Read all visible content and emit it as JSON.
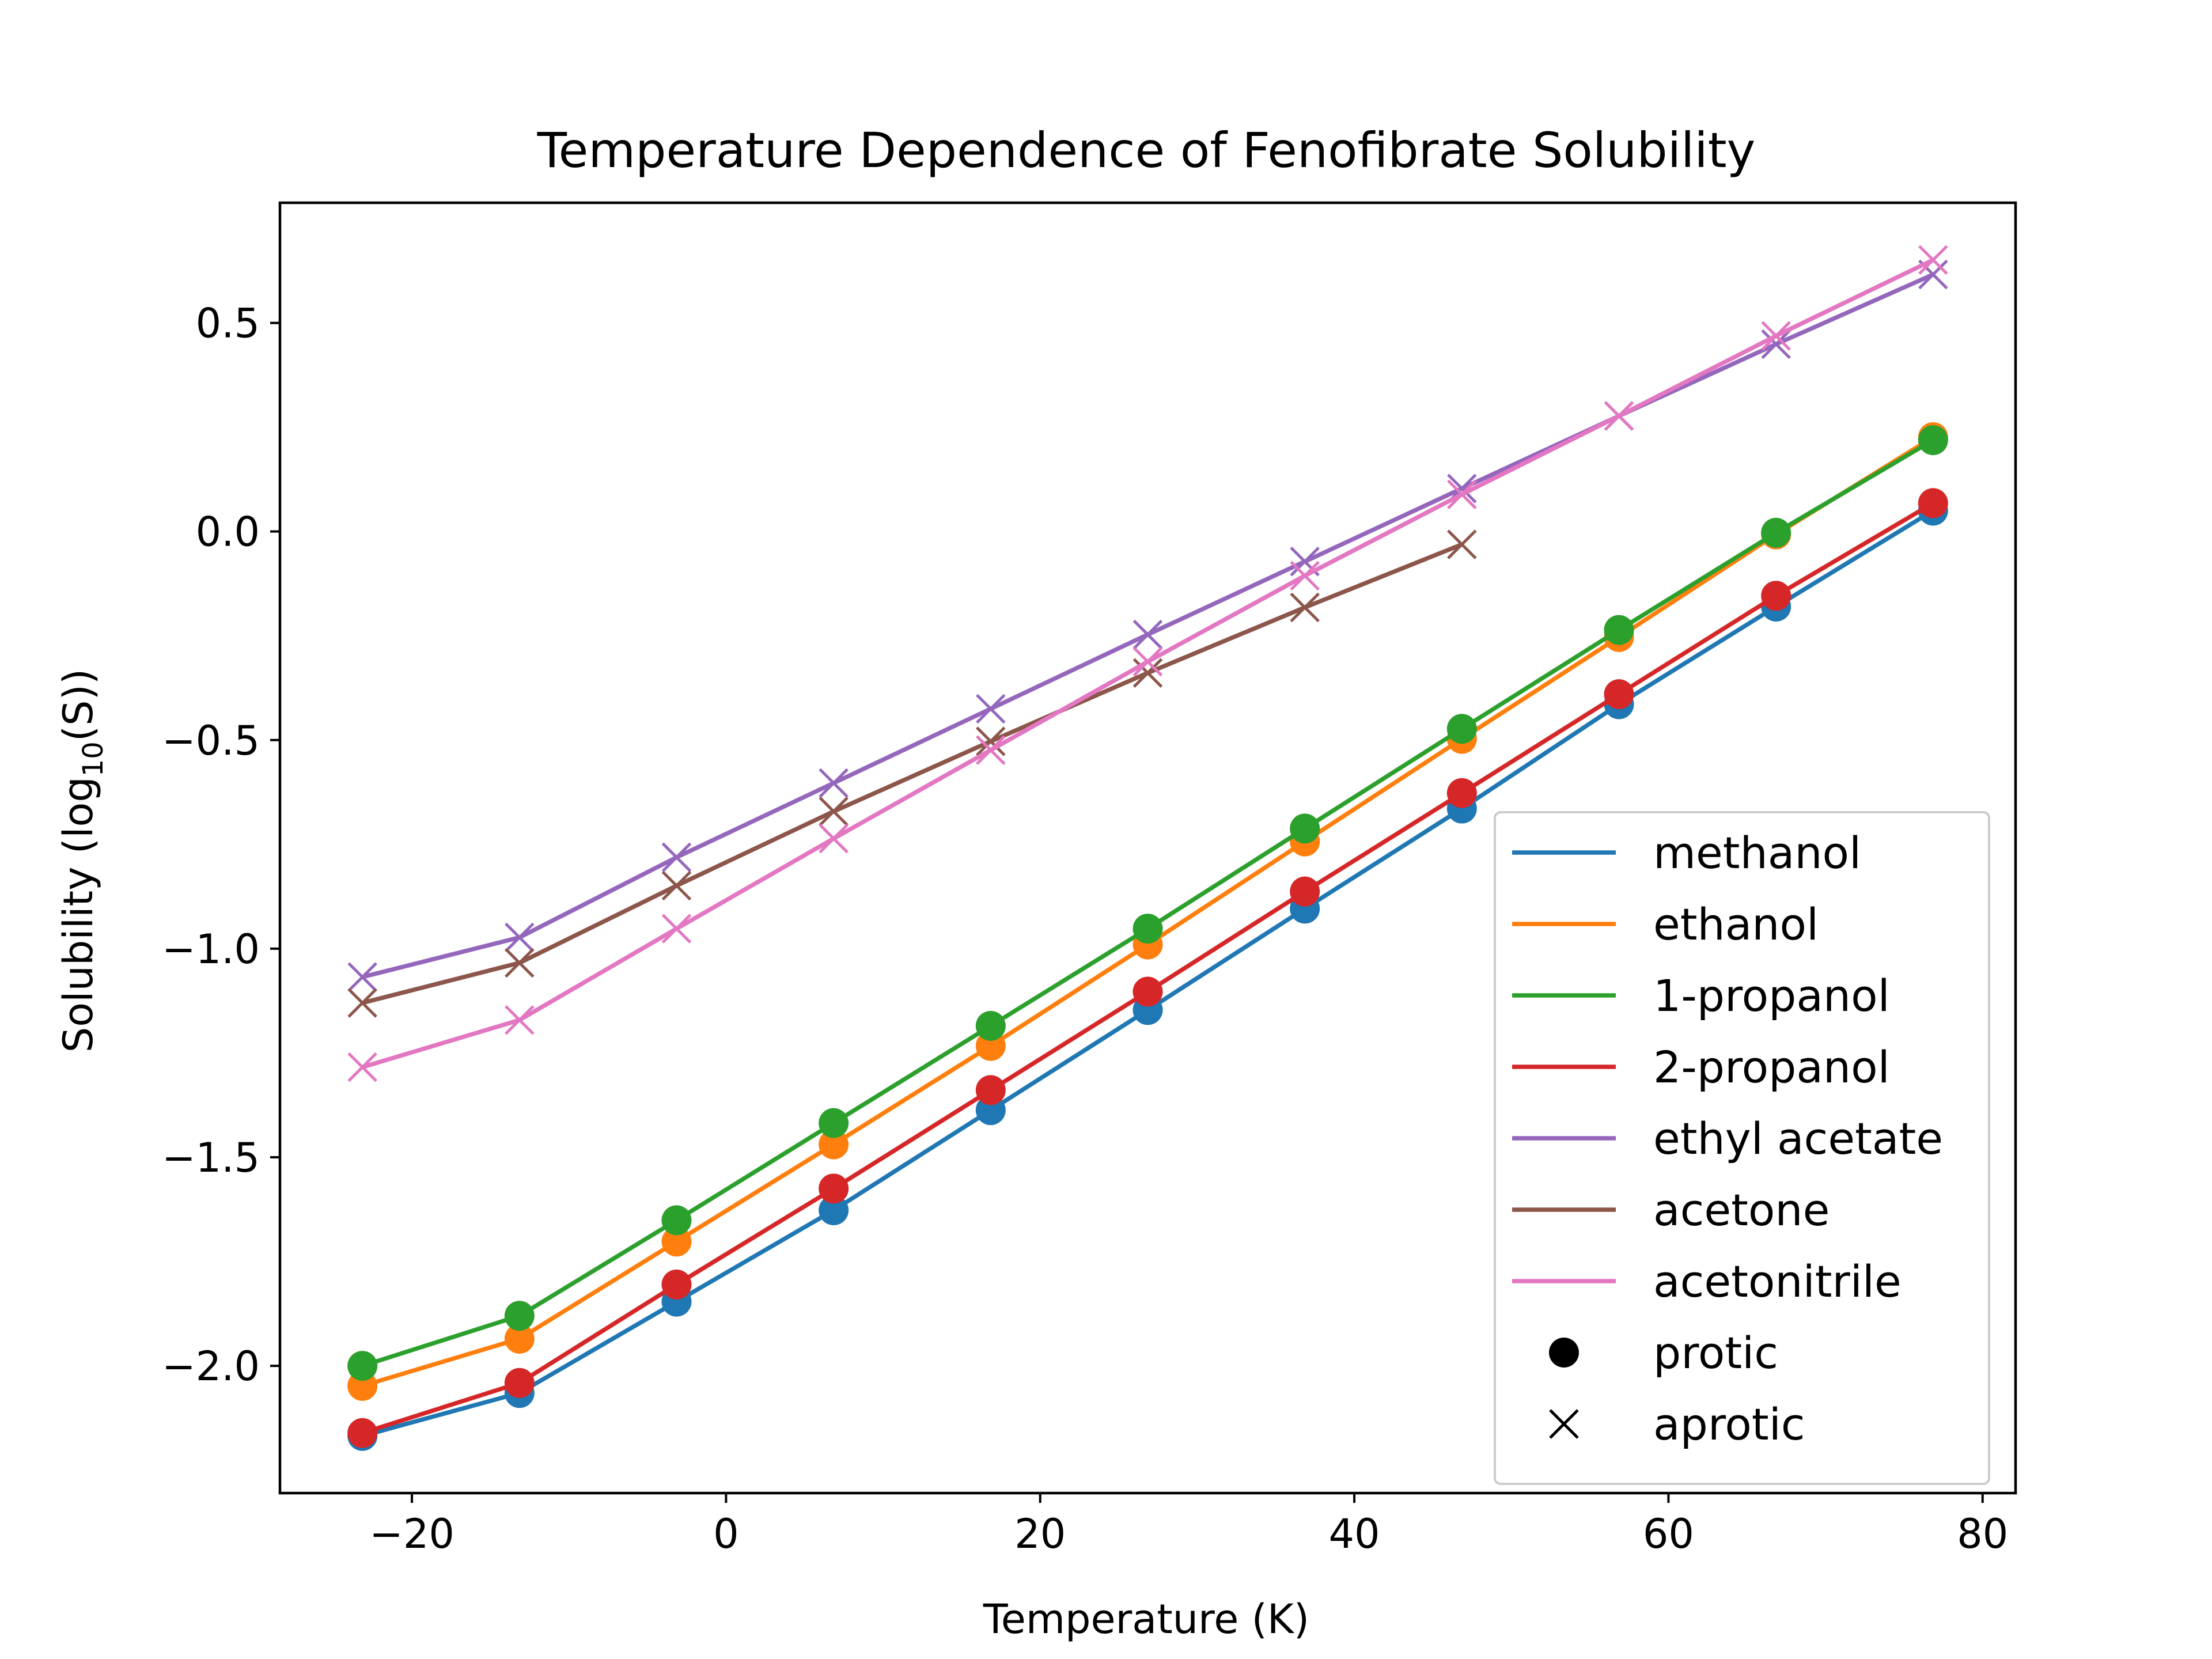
{
  "chart_data": {
    "type": "line",
    "title": "Temperature Dependence of Fenofibrate Solubility",
    "xlabel": "Temperature (K)",
    "ylabel": "Solubility (log10(S))",
    "ylabel_parts": {
      "prefix": "Solubility (log",
      "sub": "10",
      "suffix": "(S))"
    },
    "xlim": [
      -28.4,
      82.1
    ],
    "ylim": [
      -2.305,
      0.788
    ],
    "xticks": [
      -20,
      0,
      20,
      40,
      60,
      80
    ],
    "xtick_labels": [
      "−20",
      "0",
      "20",
      "40",
      "60",
      "80"
    ],
    "yticks": [
      0.5,
      0.0,
      -0.5,
      -1.0,
      -1.5,
      -2.0
    ],
    "ytick_labels": [
      "0.5",
      "0.0",
      "−0.5",
      "−1.0",
      "−1.5",
      "−2.0"
    ],
    "grid": false,
    "legend_position": "lower-right",
    "x": [
      -23.15,
      -13.15,
      -3.15,
      6.85,
      16.85,
      26.85,
      36.85,
      46.85,
      56.85,
      66.85,
      76.85
    ],
    "series": [
      {
        "name": "methanol",
        "color": "#1f77b4",
        "marker": "circle",
        "values": [
          -2.168,
          -2.065,
          -1.846,
          -1.627,
          -1.387,
          -1.147,
          -0.904,
          -0.664,
          -0.414,
          -0.18,
          0.05
        ]
      },
      {
        "name": "ethanol",
        "color": "#ff7f0e",
        "marker": "circle",
        "values": [
          -2.048,
          -1.935,
          -1.702,
          -1.469,
          -1.233,
          -0.99,
          -0.743,
          -0.497,
          -0.253,
          -0.007,
          0.226
        ]
      },
      {
        "name": "1-propanol",
        "color": "#2ca02c",
        "marker": "circle",
        "values": [
          -2.0,
          -1.88,
          -1.651,
          -1.418,
          -1.185,
          -0.952,
          -0.712,
          -0.473,
          -0.236,
          -0.003,
          0.219
        ]
      },
      {
        "name": "2-propanol",
        "color": "#d62728",
        "marker": "circle",
        "values": [
          -2.161,
          -2.041,
          -1.805,
          -1.575,
          -1.339,
          -1.103,
          -0.863,
          -0.627,
          -0.39,
          -0.154,
          0.068
        ]
      },
      {
        "name": "ethyl acetate",
        "color": "#9467bd",
        "marker": "x",
        "values": [
          -1.068,
          -0.973,
          -0.781,
          -0.603,
          -0.425,
          -0.247,
          -0.072,
          0.103,
          0.277,
          0.449,
          0.616
        ]
      },
      {
        "name": "acetone",
        "color": "#8c564b",
        "marker": "x",
        "values": [
          -1.13,
          -1.034,
          -0.849,
          -0.671,
          -0.503,
          -0.339,
          -0.182,
          -0.031,
          null,
          null,
          null
        ]
      },
      {
        "name": "acetonitrile",
        "color": "#e377c2",
        "marker": "x",
        "values": [
          -1.284,
          -1.171,
          -0.952,
          -0.736,
          -0.524,
          -0.312,
          -0.106,
          0.089,
          0.277,
          0.469,
          0.651
        ]
      }
    ],
    "legend_markers": [
      {
        "label": "protic",
        "marker": "circle"
      },
      {
        "label": "aprotic",
        "marker": "x"
      }
    ]
  }
}
